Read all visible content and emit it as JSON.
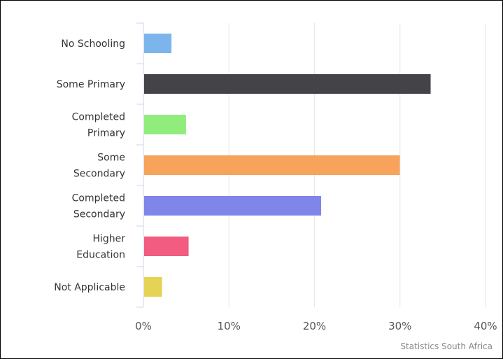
{
  "chart_data": {
    "type": "bar",
    "orientation": "horizontal",
    "categories": [
      [
        "No Schooling"
      ],
      [
        "Some Primary"
      ],
      [
        "Completed",
        "Primary"
      ],
      [
        "Some",
        "Secondary"
      ],
      [
        "Completed",
        "Secondary"
      ],
      [
        "Higher",
        "Education"
      ],
      [
        "Not Applicable"
      ]
    ],
    "values": [
      3.2,
      33.5,
      4.9,
      29.9,
      20.7,
      5.2,
      2.1
    ],
    "colors": [
      "#7cb5ec",
      "#434348",
      "#90ed7d",
      "#f7a35c",
      "#8085e9",
      "#f15c80",
      "#e4d354"
    ],
    "xlim": [
      0,
      40
    ],
    "xticks": [
      0,
      10,
      20,
      30,
      40
    ],
    "tick_suffix": "%",
    "grid": "vertical",
    "legend": "none",
    "credit": "Statistics South Africa"
  }
}
